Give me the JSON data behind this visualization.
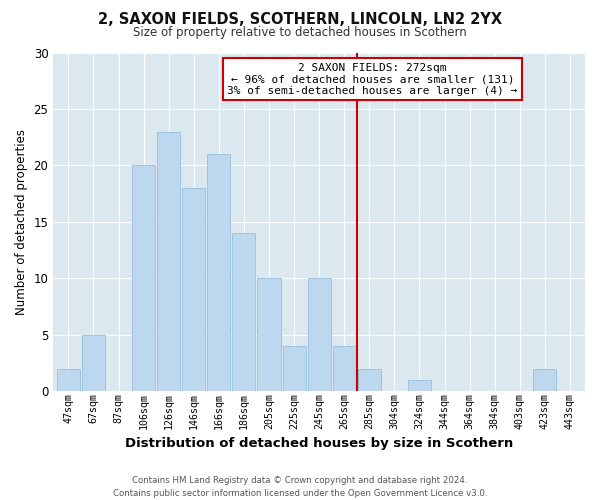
{
  "title": "2, SAXON FIELDS, SCOTHERN, LINCOLN, LN2 2YX",
  "subtitle": "Size of property relative to detached houses in Scothern",
  "xlabel": "Distribution of detached houses by size in Scothern",
  "ylabel": "Number of detached properties",
  "footer_line1": "Contains HM Land Registry data © Crown copyright and database right 2024.",
  "footer_line2": "Contains public sector information licensed under the Open Government Licence v3.0.",
  "bin_labels": [
    "47sqm",
    "67sqm",
    "87sqm",
    "106sqm",
    "126sqm",
    "146sqm",
    "166sqm",
    "186sqm",
    "205sqm",
    "225sqm",
    "245sqm",
    "265sqm",
    "285sqm",
    "304sqm",
    "324sqm",
    "344sqm",
    "364sqm",
    "384sqm",
    "403sqm",
    "423sqm",
    "443sqm"
  ],
  "bar_values": [
    2,
    5,
    0,
    20,
    23,
    18,
    21,
    14,
    10,
    4,
    10,
    4,
    2,
    0,
    1,
    0,
    0,
    0,
    0,
    2,
    0
  ],
  "bar_color": "#bdd7ee",
  "bar_edge_color": "#9ec4e0",
  "vline_color": "#cc0000",
  "annotation_text": "2 SAXON FIELDS: 272sqm\n← 96% of detached houses are smaller (131)\n3% of semi-detached houses are larger (4) →",
  "annotation_box_color": "#ffffff",
  "annotation_box_edge": "#cc0000",
  "ylim": [
    0,
    30
  ],
  "yticks": [
    0,
    5,
    10,
    15,
    20,
    25,
    30
  ],
  "fig_bg_color": "#ffffff",
  "plot_bg_color": "#dce8f0",
  "grid_color": "#ffffff",
  "title_color": "#111111",
  "subtitle_color": "#333333",
  "footer_color": "#555555"
}
